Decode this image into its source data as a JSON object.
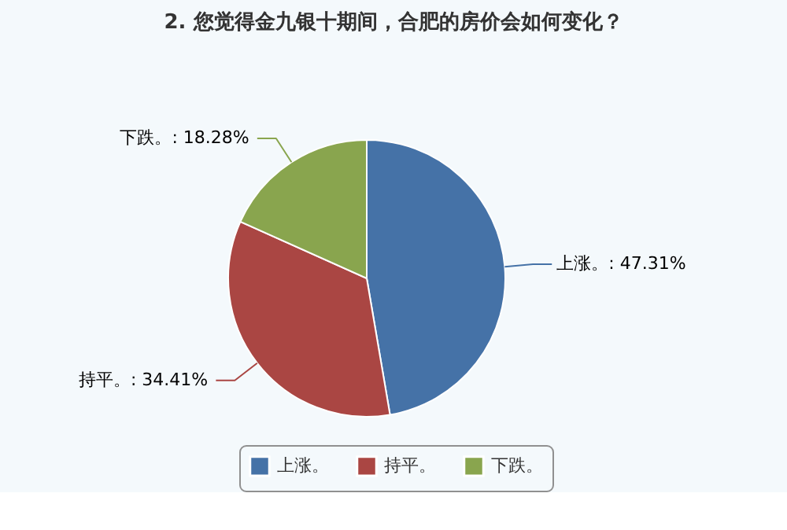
{
  "chart_data": {
    "type": "pie",
    "title": "2. 您觉得金九银十期间，合肥的房价会如何变化？",
    "categories": [
      "上涨。",
      "持平。",
      "下跌。"
    ],
    "values": [
      47.31,
      34.41,
      18.28
    ],
    "colors": [
      "#4572a7",
      "#aa4643",
      "#89a54e"
    ],
    "value_labels": [
      ": 47.31%",
      ": 34.41%",
      ": 18.28%"
    ],
    "legend": "bottom"
  }
}
